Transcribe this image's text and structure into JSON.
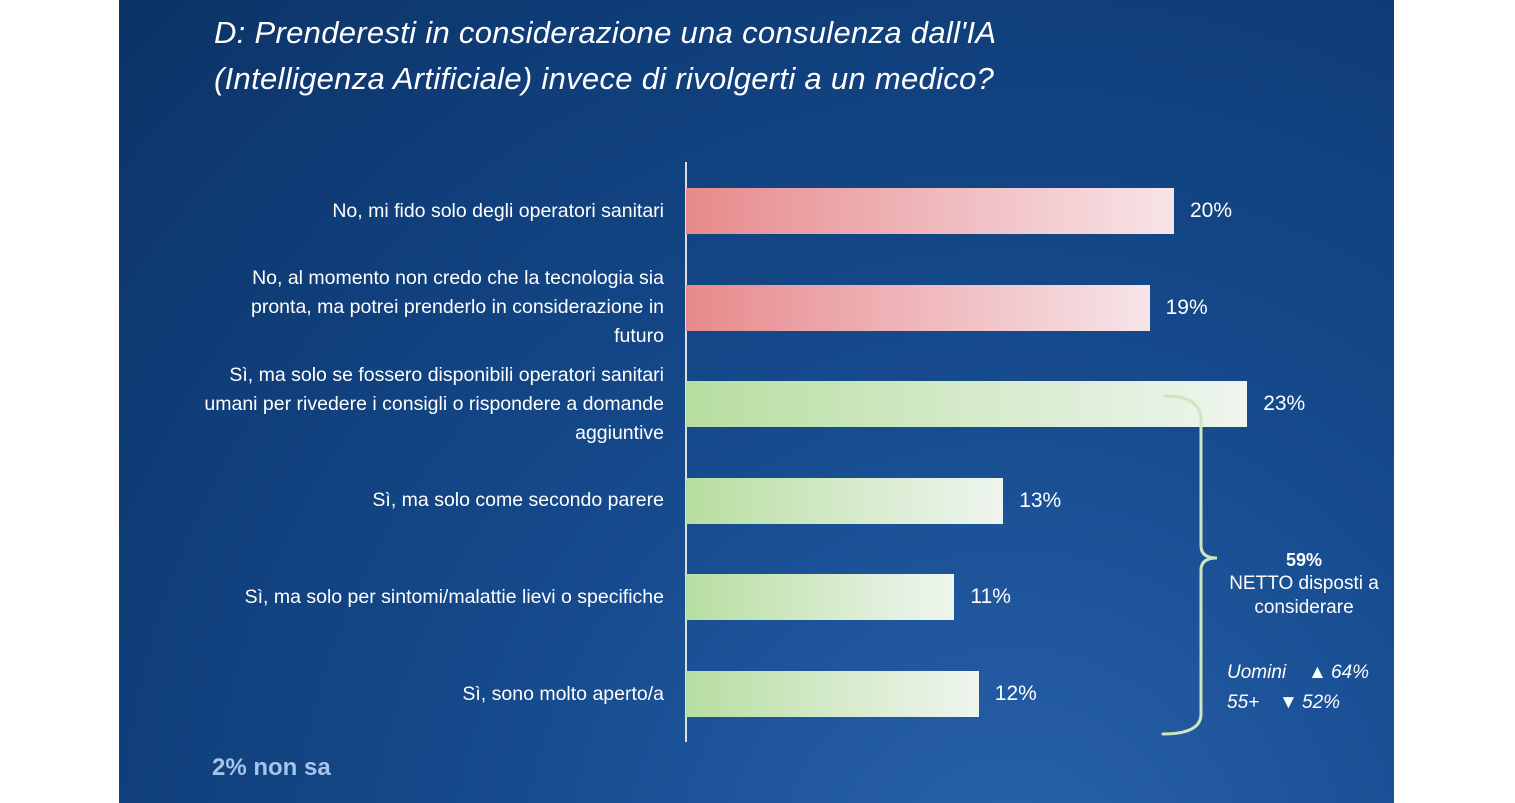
{
  "title": {
    "line1": "D: Prenderesti in considerazione una consulenza dall'IA",
    "line2": "(Intelligenza Artificiale) invece di rivolgerti a un medico?"
  },
  "chart_data": {
    "type": "bar",
    "orientation": "horizontal",
    "categories": [
      "No, mi fido solo degli operatori sanitari",
      "No, al momento non credo che la tecnologia sia pronta, ma potrei prenderlo in considerazione in futuro",
      "Sì, ma solo se fossero disponibili operatori sanitari umani per rivedere i consigli o rispondere a domande aggiuntive",
      "Sì, ma solo come secondo parere",
      "Sì, ma solo per sintomi/malattie lievi o specifiche",
      "Sì, sono molto aperto/a"
    ],
    "category_lines": [
      [
        "No, mi fido solo degli operatori sanitari"
      ],
      [
        "No, al momento non credo che la tecnologia sia",
        "pronta, ma potrei prenderlo in considerazione in",
        "futuro"
      ],
      [
        "Sì, ma solo se fossero disponibili operatori sanitari",
        "umani per rivedere i consigli o rispondere a domande",
        "aggiuntive"
      ],
      [
        "Sì, ma solo come secondo parere"
      ],
      [
        "Sì, ma solo per sintomi/malattie lievi o specifiche"
      ],
      [
        "Sì, sono molto aperto/a"
      ]
    ],
    "values": [
      20,
      19,
      23,
      13,
      11,
      12
    ],
    "value_labels": [
      "20%",
      "19%",
      "23%",
      "13%",
      "11%",
      "12%"
    ],
    "sentiment": [
      "no",
      "no",
      "yes",
      "yes",
      "yes",
      "yes"
    ],
    "xlim": [
      0,
      25
    ],
    "unit": "%",
    "colors": {
      "no": "#e78a8b",
      "yes": "#b7dea0"
    },
    "grid": false,
    "legend": "none"
  },
  "net": {
    "value": "59%",
    "text_line1": "NETTO disposti a",
    "text_line2": "considerare"
  },
  "segments": {
    "men": {
      "label": "Uomini",
      "arrow": "▲",
      "value": "64%"
    },
    "age": {
      "label": "55+",
      "arrow": "▼",
      "value": "52%"
    }
  },
  "footnote": "2% non sa",
  "colors": {
    "background": "#0f3d78",
    "bracket": "#cfe6c0",
    "footnote": "#a7c4ea"
  }
}
